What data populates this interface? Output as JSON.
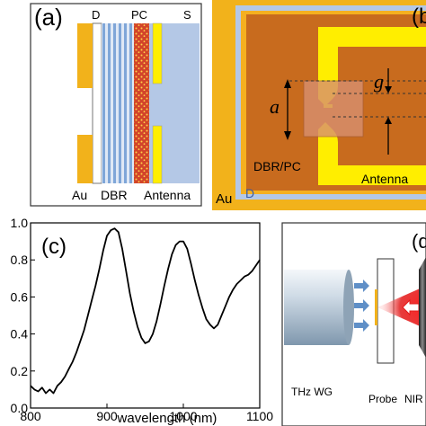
{
  "panel_a": {
    "tag": "(a)",
    "labels": {
      "d": "D",
      "pc": "PC",
      "s": "S",
      "au": "Au",
      "dbr": "DBR",
      "antenna": "Antenna"
    }
  },
  "panel_b": {
    "tag": "(b",
    "labels": {
      "g": "g",
      "a": "a",
      "dbr_pc": "DBR/PC",
      "antenna": "Antenna",
      "au": "Au",
      "d": "D"
    }
  },
  "panel_d": {
    "tag": "(d",
    "labels": {
      "thz_wg": "THz WG",
      "probe": "Probe",
      "nir": "NIR"
    }
  },
  "colors": {
    "gold": "#f2b21b",
    "yellow": "#ffee00",
    "copper": "#c86b1e",
    "substrate": "#b4c8e6",
    "dbr_stripe": "#7fa6d8",
    "pc_red": "#d2442a",
    "laser_red": "#e21a1a"
  },
  "chart_data": {
    "type": "line",
    "tag": "(c)",
    "xlabel": "wavelength (nm)",
    "ylabel": "",
    "xlim": [
      800,
      1100
    ],
    "ylim": [
      0.0,
      1.0
    ],
    "xticks": [
      800,
      900,
      1000,
      1100
    ],
    "yticks": [
      0.0,
      0.2,
      0.4,
      0.6,
      0.8,
      1.0
    ],
    "x": [
      800,
      805,
      810,
      815,
      820,
      825,
      830,
      835,
      840,
      845,
      850,
      855,
      860,
      865,
      870,
      875,
      880,
      885,
      890,
      895,
      900,
      905,
      910,
      915,
      920,
      925,
      930,
      935,
      940,
      945,
      950,
      955,
      960,
      965,
      970,
      975,
      980,
      985,
      990,
      995,
      1000,
      1005,
      1010,
      1015,
      1020,
      1025,
      1030,
      1035,
      1040,
      1045,
      1050,
      1055,
      1060,
      1065,
      1070,
      1075,
      1080,
      1085,
      1090,
      1095,
      1100
    ],
    "y": [
      0.12,
      0.1,
      0.09,
      0.11,
      0.08,
      0.1,
      0.08,
      0.12,
      0.14,
      0.17,
      0.21,
      0.25,
      0.3,
      0.36,
      0.42,
      0.5,
      0.58,
      0.66,
      0.75,
      0.85,
      0.93,
      0.96,
      0.97,
      0.95,
      0.86,
      0.74,
      0.62,
      0.52,
      0.44,
      0.38,
      0.35,
      0.36,
      0.4,
      0.47,
      0.56,
      0.66,
      0.75,
      0.83,
      0.88,
      0.9,
      0.9,
      0.86,
      0.78,
      0.69,
      0.61,
      0.54,
      0.48,
      0.45,
      0.43,
      0.45,
      0.5,
      0.55,
      0.6,
      0.64,
      0.67,
      0.69,
      0.71,
      0.72,
      0.74,
      0.77,
      0.8
    ]
  }
}
